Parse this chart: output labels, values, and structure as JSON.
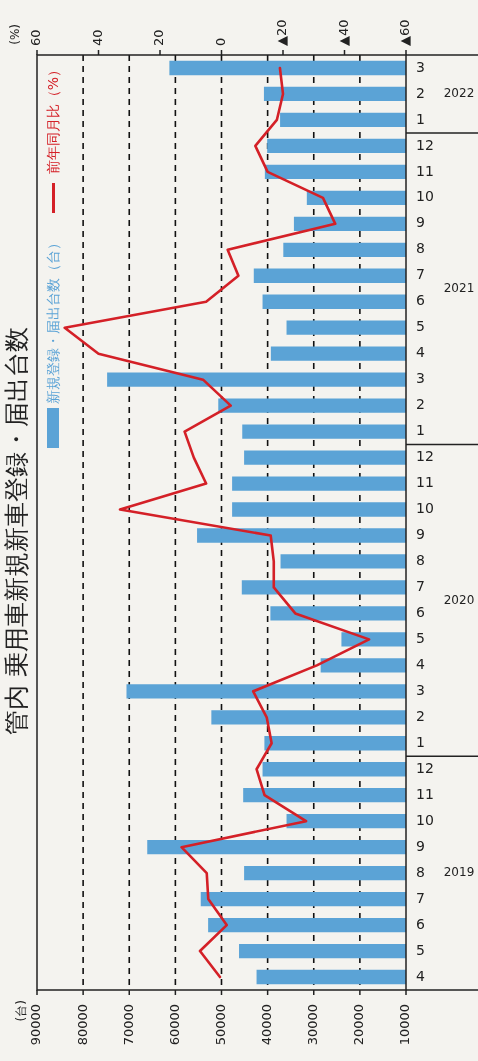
{
  "chart_data": {
    "type": "bar",
    "orientation": "horizontal",
    "title": "管内 乗用車新規新車登録・届出台数",
    "x2label": "(%)",
    "categories": [
      "3",
      "2",
      "1",
      "12",
      "11",
      "10",
      "9",
      "8",
      "7",
      "6",
      "5",
      "4",
      "3",
      "2",
      "1",
      "12",
      "11",
      "10",
      "9",
      "8",
      "7",
      "6",
      "5",
      "4",
      "3",
      "2",
      "1",
      "12",
      "11",
      "10",
      "9",
      "8",
      "7",
      "6",
      "5",
      "4"
    ],
    "series": [
      {
        "name": "新規登録・届出台数（台）",
        "color": "#5ba3d6",
        "values": [
          61300,
          40800,
          37300,
          40100,
          40600,
          31500,
          34300,
          36600,
          43000,
          41100,
          35900,
          39300,
          74800,
          50700,
          45500,
          45100,
          47700,
          47700,
          55300,
          37200,
          45600,
          39400,
          24000,
          28500,
          70600,
          52200,
          40700,
          41100,
          45300,
          35900,
          66100,
          45100,
          54500,
          52900,
          46200,
          42400
        ]
      },
      {
        "name": "前年同月比（%）",
        "type": "line",
        "axis": "x2",
        "color": "#d42027",
        "values": [
          -19,
          -20,
          -18,
          -11,
          -15,
          -33,
          -37,
          -2,
          -5.5,
          5,
          51,
          40,
          6,
          -3,
          12,
          9,
          5,
          33,
          -16,
          -17,
          -17,
          -24,
          -48,
          -31,
          -10.3,
          -14.7,
          -16.3,
          -11.4,
          -14,
          -27.5,
          13,
          4.8,
          4.3,
          -1.7,
          7,
          0.5
        ]
      }
    ],
    "xlim": [
      90000,
      10000
    ],
    "xticks": [
      10000,
      20000,
      30000,
      40000,
      50000,
      60000,
      70000,
      80000,
      90000
    ],
    "x2lim": [
      60,
      -60
    ],
    "x2ticks": [
      {
        "value": -60,
        "label": "▲60"
      },
      {
        "value": -40,
        "label": "▲40"
      },
      {
        "value": -20,
        "label": "▲20"
      },
      0,
      20,
      40,
      60
    ],
    "annotations": [
      "2022",
      "2021",
      "2020",
      "2019",
      "(台)"
    ],
    "grid": "x",
    "legend": "top left",
    "marker": "none"
  }
}
